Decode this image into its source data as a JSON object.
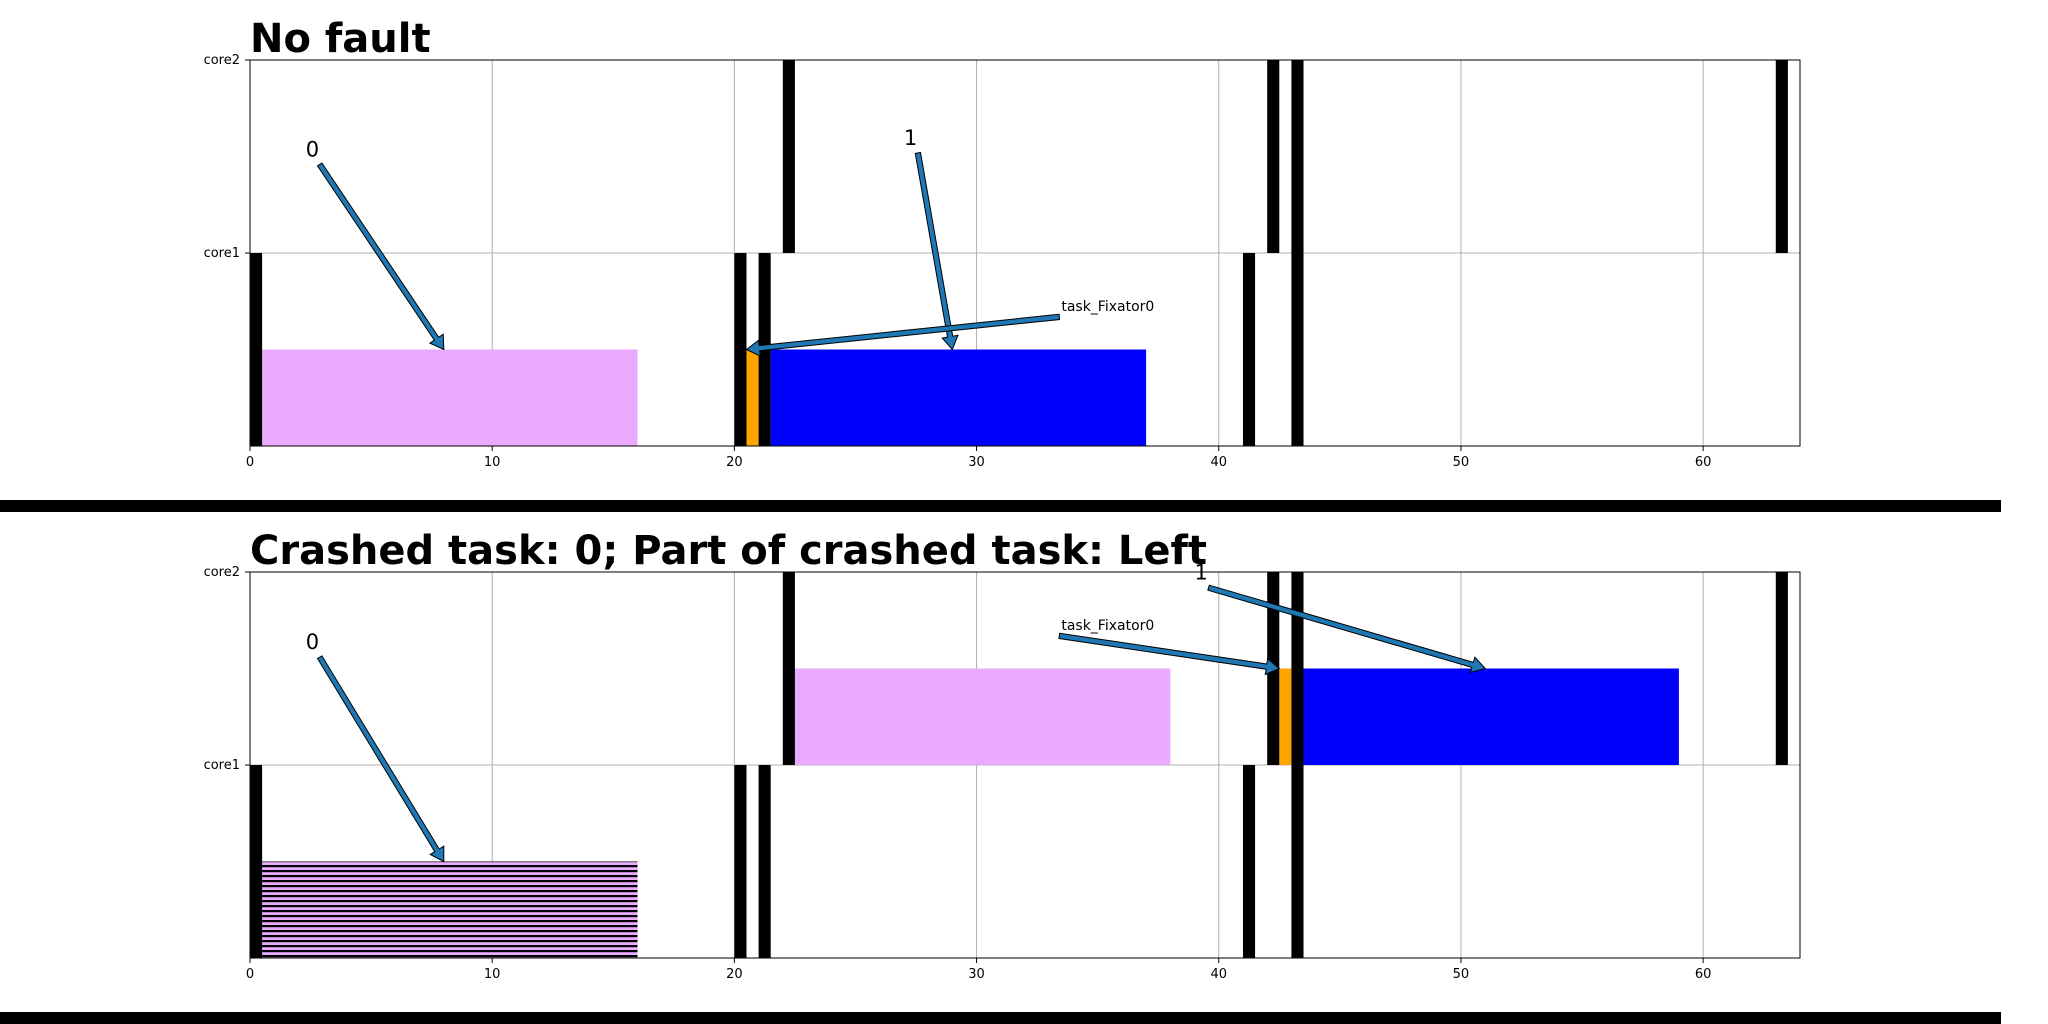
{
  "colors": {
    "task_crashed": "#e9aaff",
    "task_normal": "#0000ff",
    "task_fixator": "#ffa500",
    "marker": "#000000",
    "arrow": "#1f77b4",
    "grid": "#b0b0b0",
    "separator": "#000000"
  },
  "chart_data": [
    {
      "type": "gantt",
      "title": "No fault",
      "xlim": [
        0,
        64
      ],
      "x_ticks": [
        0,
        10,
        20,
        30,
        40,
        50,
        60
      ],
      "y_categories": [
        "core1",
        "core2"
      ],
      "grid": true,
      "markers": [
        {
          "core": "core1",
          "x": 0.25
        },
        {
          "core": "core1",
          "x": 20.25
        },
        {
          "core": "core1",
          "x": 21.25
        },
        {
          "core": "core1",
          "x": 41.25
        },
        {
          "core": "core1",
          "x": 43.25
        },
        {
          "core": "core2",
          "x": 22.25
        },
        {
          "core": "core2",
          "x": 42.25
        },
        {
          "core": "core2",
          "x": 43.25
        },
        {
          "core": "core2",
          "x": 63.25
        }
      ],
      "bars": [
        {
          "core": "core1",
          "start": 0.5,
          "end": 16,
          "color": "#e9aaff",
          "hatched": false
        },
        {
          "core": "core1",
          "start": 20.5,
          "end": 21,
          "color": "#ffa500",
          "hatched": false
        },
        {
          "core": "core1",
          "start": 21.5,
          "end": 37,
          "color": "#0000ff",
          "hatched": false
        }
      ],
      "annotations": [
        {
          "text": "0",
          "kind": "num",
          "text_x": 2.3,
          "text_core": "core2",
          "text_y": 0.5,
          "target_x": 8,
          "target_core": "core1",
          "target_y": 0.5
        },
        {
          "text": "1",
          "kind": "num",
          "text_x": 27,
          "text_core": "core2",
          "text_y": 0.56,
          "target_x": 29,
          "target_core": "core1",
          "target_y": 0.5
        },
        {
          "text": "task_Fixator0",
          "kind": "txt",
          "text_x": 33.5,
          "text_core": "core1",
          "text_y": 0.7,
          "target_x": 20.5,
          "target_core": "core1",
          "target_y": 0.5
        }
      ]
    },
    {
      "type": "gantt",
      "title": "Crashed task: 0; Part of crashed task: Left",
      "xlim": [
        0,
        64
      ],
      "x_ticks": [
        0,
        10,
        20,
        30,
        40,
        50,
        60
      ],
      "y_categories": [
        "core1",
        "core2"
      ],
      "grid": true,
      "markers": [
        {
          "core": "core1",
          "x": 0.25
        },
        {
          "core": "core1",
          "x": 20.25
        },
        {
          "core": "core1",
          "x": 21.25
        },
        {
          "core": "core1",
          "x": 41.25
        },
        {
          "core": "core1",
          "x": 43.25
        },
        {
          "core": "core2",
          "x": 22.25
        },
        {
          "core": "core2",
          "x": 42.25
        },
        {
          "core": "core2",
          "x": 43.25
        },
        {
          "core": "core2",
          "x": 63.25
        }
      ],
      "bars": [
        {
          "core": "core1",
          "start": 0.5,
          "end": 16,
          "color": "#e9aaff",
          "hatched": true
        },
        {
          "core": "core2",
          "start": 22.5,
          "end": 38,
          "color": "#e9aaff",
          "hatched": false
        },
        {
          "core": "core2",
          "start": 42.5,
          "end": 43,
          "color": "#ffa500",
          "hatched": false
        },
        {
          "core": "core2",
          "start": 43.5,
          "end": 59,
          "color": "#0000ff",
          "hatched": false
        }
      ],
      "annotations": [
        {
          "text": "0",
          "kind": "num",
          "text_x": 2.3,
          "text_core": "core2",
          "text_y": 0.6,
          "target_x": 8,
          "target_core": "core1",
          "target_y": 0.5
        },
        {
          "text": "1",
          "kind": "num",
          "text_x": 39,
          "text_core": "core2",
          "text_y": 0.96,
          "target_x": 51,
          "target_core": "core2",
          "target_y": 0.5
        },
        {
          "text": "task_Fixator0",
          "kind": "txt",
          "text_x": 33.5,
          "text_core": "core2",
          "text_y": 0.7,
          "target_x": 42.5,
          "target_core": "core2",
          "target_y": 0.5
        }
      ]
    }
  ]
}
